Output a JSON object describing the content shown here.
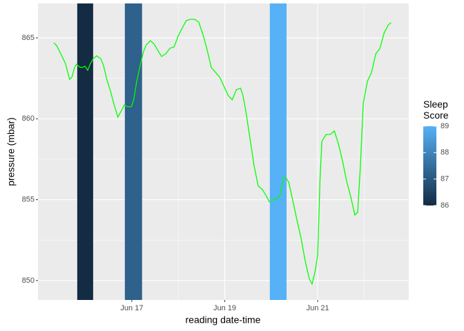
{
  "chart_data": {
    "type": "line",
    "x_label": "reading date-time",
    "y_label": "pressure (mbar)",
    "xlim": [
      14.98,
      22.96
    ],
    "xticks": [
      {
        "value": 17,
        "label": "Jun 17"
      },
      {
        "value": 19,
        "label": "Jun 19"
      },
      {
        "value": 21,
        "label": "Jun 21"
      }
    ],
    "ylim": [
      848.8,
      867.13
    ],
    "yticks": [
      850,
      855,
      860,
      865
    ],
    "grid": true,
    "series": [
      {
        "name": "pressure",
        "color": "#00FF00",
        "x": [
          15.32,
          15.38,
          15.47,
          15.57,
          15.66,
          15.71,
          15.77,
          15.81,
          15.87,
          15.93,
          15.99,
          16.05,
          16.11,
          16.17,
          16.24,
          16.33,
          16.39,
          16.46,
          16.54,
          16.61,
          16.7,
          16.78,
          16.84,
          16.9,
          16.99,
          17.04,
          17.1,
          17.18,
          17.25,
          17.31,
          17.4,
          17.48,
          17.55,
          17.64,
          17.73,
          17.82,
          17.91,
          18.0,
          18.09,
          18.17,
          18.26,
          18.35,
          18.44,
          18.53,
          18.62,
          18.71,
          18.8,
          18.89,
          18.98,
          19.07,
          19.16,
          19.25,
          19.34,
          19.39,
          19.45,
          19.54,
          19.63,
          19.72,
          19.81,
          19.9,
          19.96,
          20.05,
          20.14,
          20.2,
          20.26,
          20.32,
          20.38,
          20.46,
          20.55,
          20.64,
          20.73,
          20.82,
          20.88,
          20.94,
          21.0,
          21.05,
          21.09,
          21.18,
          21.27,
          21.36,
          21.45,
          21.54,
          21.62,
          21.71,
          21.8,
          21.86,
          21.92,
          21.98,
          22.07,
          22.16,
          22.25,
          22.34,
          22.43,
          22.52,
          22.58
        ],
        "values": [
          864.7,
          864.53,
          864.02,
          863.42,
          862.44,
          862.57,
          863.21,
          863.38,
          863.21,
          863.17,
          863.25,
          863.0,
          863.42,
          863.72,
          863.89,
          863.72,
          863.3,
          862.44,
          861.72,
          860.95,
          860.1,
          860.52,
          860.87,
          860.74,
          860.74,
          861.17,
          862.23,
          863.3,
          864.15,
          864.57,
          864.83,
          864.62,
          864.28,
          863.85,
          864.02,
          864.36,
          864.45,
          865.13,
          865.64,
          866.07,
          866.15,
          866.15,
          865.98,
          865.21,
          864.28,
          863.17,
          862.87,
          862.57,
          862.02,
          861.46,
          861.17,
          861.8,
          861.89,
          861.46,
          860.53,
          858.82,
          857.12,
          855.84,
          855.63,
          855.2,
          854.86,
          854.99,
          855.07,
          855.33,
          856.35,
          856.35,
          856.05,
          854.99,
          853.79,
          852.64,
          851.24,
          850.09,
          849.79,
          850.51,
          851.58,
          856.27,
          858.61,
          859.03,
          859.03,
          859.25,
          858.4,
          857.33,
          856.18,
          855.2,
          854.05,
          854.22,
          857.12,
          860.95,
          862.32,
          862.87,
          864.02,
          864.36,
          865.3,
          865.81,
          865.94
        ]
      }
    ],
    "bands": [
      {
        "start": 15.825,
        "end": 16.167,
        "value": 86
      },
      {
        "start": 16.85,
        "end": 17.22,
        "value": 87.2
      },
      {
        "start": 19.97,
        "end": 20.33,
        "value": 89
      }
    ],
    "colorbar": {
      "title": "Sleep Score",
      "limits": [
        86,
        89
      ],
      "ticks": [
        86,
        87,
        88,
        89
      ],
      "low": "#132B43",
      "high": "#56B1F7"
    }
  }
}
